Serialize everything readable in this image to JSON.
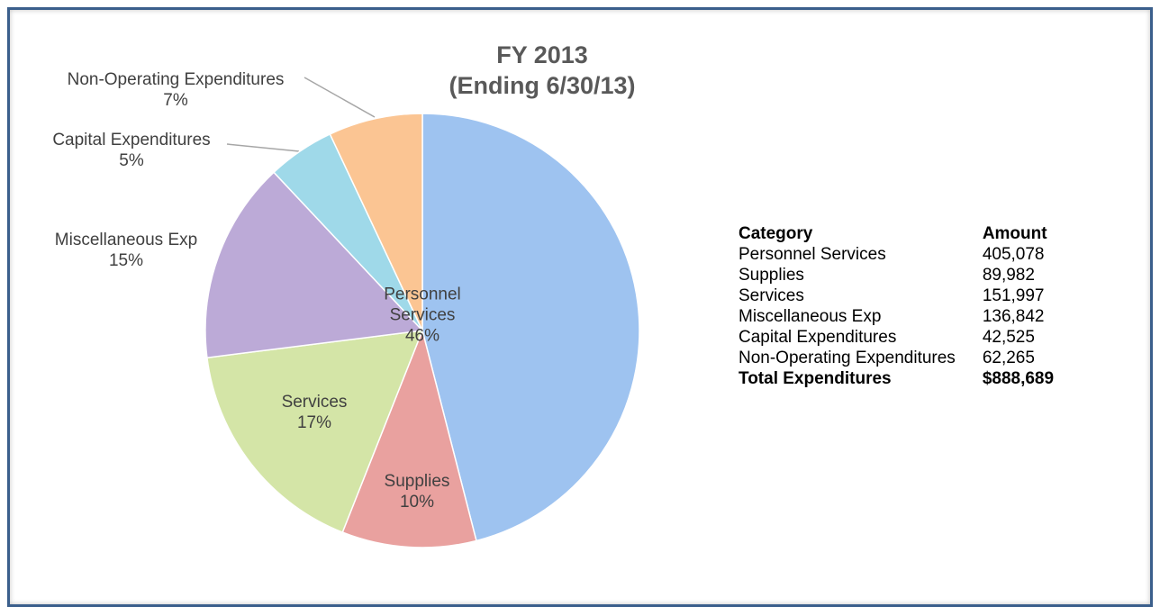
{
  "chart_data": {
    "type": "pie",
    "title": "FY 2013",
    "subtitle": "(Ending 6/30/13)",
    "categories": [
      "Personnel Services",
      "Supplies",
      "Services",
      "Miscellaneous Exp",
      "Capital Expenditures",
      "Non-Operating Expenditures"
    ],
    "values": [
      46,
      10,
      17,
      15,
      5,
      7
    ],
    "value_labels": [
      "46%",
      "10%",
      "17%",
      "15%",
      "5%",
      "7%"
    ],
    "colors": [
      "#9ec3f0",
      "#e9a19f",
      "#d4e5a7",
      "#bcaad7",
      "#9fd9e9",
      "#fbc593"
    ]
  },
  "table": {
    "headers": [
      "Category",
      "Amount"
    ],
    "rows": [
      [
        "Personnel Services",
        "405,078"
      ],
      [
        "Supplies",
        "89,982"
      ],
      [
        "Services",
        "151,997"
      ],
      [
        "Miscellaneous Exp",
        "136,842"
      ],
      [
        "Capital Expenditures",
        "42,525"
      ],
      [
        "Non-Operating Expenditures",
        "62,265"
      ]
    ],
    "total": [
      "Total Expenditures",
      "$888,689"
    ]
  }
}
